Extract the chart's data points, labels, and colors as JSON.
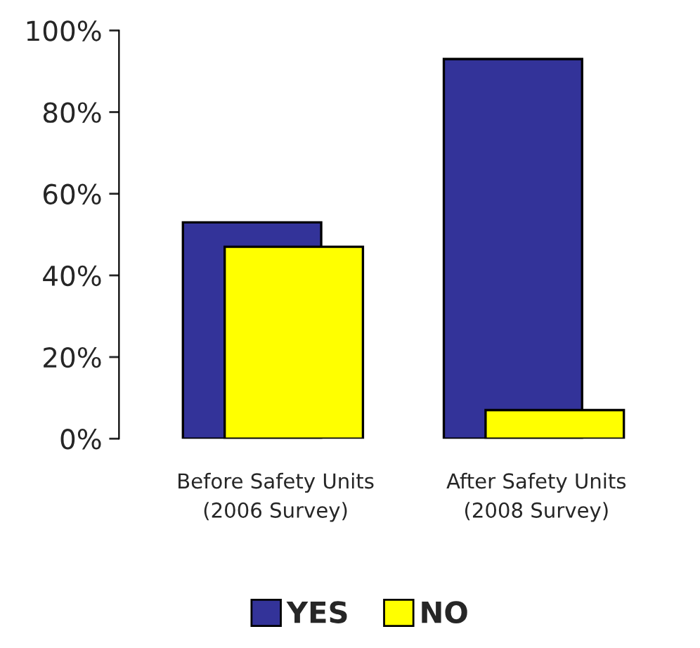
{
  "chart_data": {
    "type": "bar",
    "categories": [
      "Before Safety Units\n(2006 Survey)",
      "After Safety Units\n(2008 Survey)"
    ],
    "series": [
      {
        "name": "YES",
        "color": "#333399",
        "values": [
          53,
          93
        ]
      },
      {
        "name": "NO",
        "color": "#ffff00",
        "values": [
          47,
          7
        ]
      }
    ],
    "ylim": [
      0,
      100
    ],
    "yticks": [
      {
        "value": 0,
        "label": "0%"
      },
      {
        "value": 20,
        "label": "20%"
      },
      {
        "value": 40,
        "label": "40%"
      },
      {
        "value": 60,
        "label": "60%"
      },
      {
        "value": 80,
        "label": "80%"
      },
      {
        "value": 100,
        "label": "100%"
      }
    ],
    "grid": false,
    "legend": "bottom"
  }
}
